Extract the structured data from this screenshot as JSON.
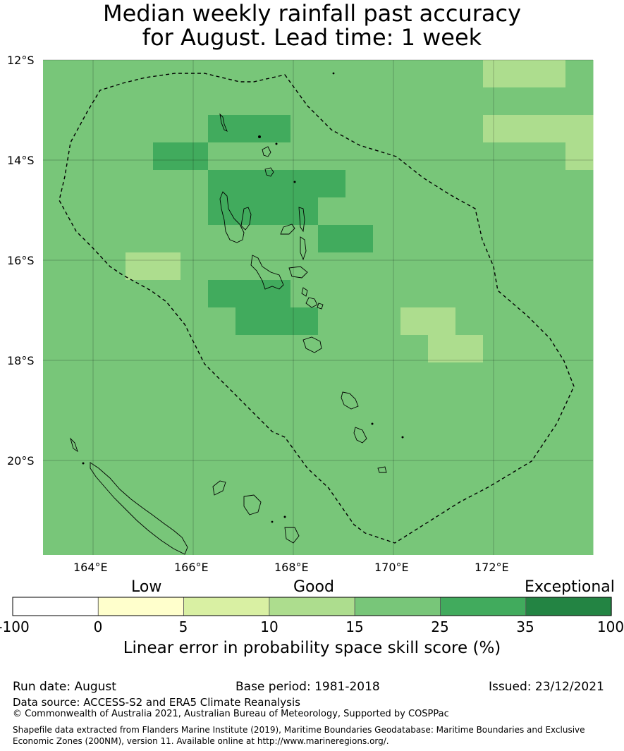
{
  "title_line1": "Median weekly rainfall past accuracy",
  "title_line2": "for August. Lead time: 1 week",
  "map": {
    "lon_labels": [
      "164°E",
      "166°E",
      "168°E",
      "170°E",
      "172°E"
    ],
    "lat_labels": [
      "12°S",
      "14°S",
      "16°S",
      "18°S",
      "20°S"
    ],
    "colors": [
      "#ffffff",
      "#ffffcc",
      "#d9f0a3",
      "#addd8e",
      "#78c679",
      "#41ab5d",
      "#238443"
    ],
    "grid": [
      "44444444444444443334",
      "44444444444444444444",
      "44444455544444443333",
      "44445544444444444443",
      "44444455555444444444",
      "44444455554444444444",
      "44444444445544444444",
      "44433444444444444444",
      "44444455544444444444",
      "44444445554443344444",
      "44444444444444334444",
      "44444444444444444444",
      "44444444444444444444",
      "44444444444444444444",
      "44444444444444444444",
      "44444444444444444444",
      "44444444444444444444",
      "44444444444444444444"
    ]
  },
  "colorbar": {
    "category_labels": [
      "Low",
      "Good",
      "Exceptional"
    ],
    "ticks": [
      "-100",
      "0",
      "5",
      "10",
      "15",
      "25",
      "35",
      "100"
    ],
    "colors": [
      "#ffffff",
      "#ffffcc",
      "#d9f0a3",
      "#addd8e",
      "#78c679",
      "#41ab5d",
      "#238443"
    ],
    "title": "Linear error in probability space skill score (%)"
  },
  "footer": {
    "run_date": "Run date: August",
    "base_period": "Base period: 1981-2018",
    "issued": "Issued: 23/12/2021",
    "data_source": "Data source: ACCESS-S2 and ERA5 Climate Reanalysis",
    "copyright": "© Commonwealth of Australia 2021, Australian Bureau of Meteorology, Supported by COSPPac",
    "shapefile": "Shapefile data extracted from Flanders Marine Institute (2019), Maritime Boundaries Geodatabase: Maritime Boundaries and Exclusive Economic Zones (200NM), version 11. Available online at http://www.marineregions.org/."
  }
}
